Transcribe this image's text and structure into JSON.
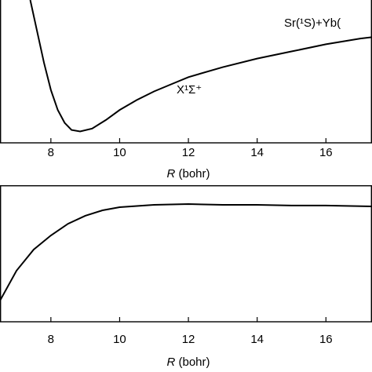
{
  "chart_data": [
    {
      "type": "line",
      "xlabel": "R (bohr)",
      "x": [
        7.4,
        7.6,
        7.8,
        8.0,
        8.2,
        8.4,
        8.6,
        8.85,
        9.2,
        9.6,
        10,
        10.5,
        11,
        11.5,
        12,
        13,
        14,
        15,
        16,
        17,
        17.34
      ],
      "series": [
        {
          "color": "#000000",
          "values": [
            1.0,
            0.78,
            0.56,
            0.37,
            0.23,
            0.14,
            0.09,
            0.08,
            0.1,
            0.16,
            0.23,
            0.3,
            0.36,
            0.41,
            0.46,
            0.53,
            0.59,
            0.64,
            0.69,
            0.73,
            0.74
          ]
        }
      ],
      "xlim": [
        6.52,
        17.34
      ],
      "ylim": [
        0,
        1
      ],
      "xticks": [
        8,
        10,
        12,
        14,
        16
      ],
      "annotations": [
        "Sr(¹S)+Yb(",
        "X¹Σ⁺"
      ]
    },
    {
      "type": "line",
      "xlabel": "R (bohr)",
      "x": [
        6.52,
        7,
        7.5,
        8,
        8.5,
        9,
        9.5,
        10,
        11,
        12,
        13,
        14,
        15,
        16,
        17.34
      ],
      "series": [
        {
          "color": "#000000",
          "values": [
            0.155,
            0.374,
            0.529,
            0.632,
            0.718,
            0.776,
            0.816,
            0.839,
            0.856,
            0.862,
            0.856,
            0.856,
            0.851,
            0.851,
            0.845
          ]
        }
      ],
      "xlim": [
        6.52,
        17.34
      ],
      "ylim": [
        0,
        1
      ],
      "xticks": [
        8,
        10,
        12,
        14,
        16
      ]
    }
  ]
}
